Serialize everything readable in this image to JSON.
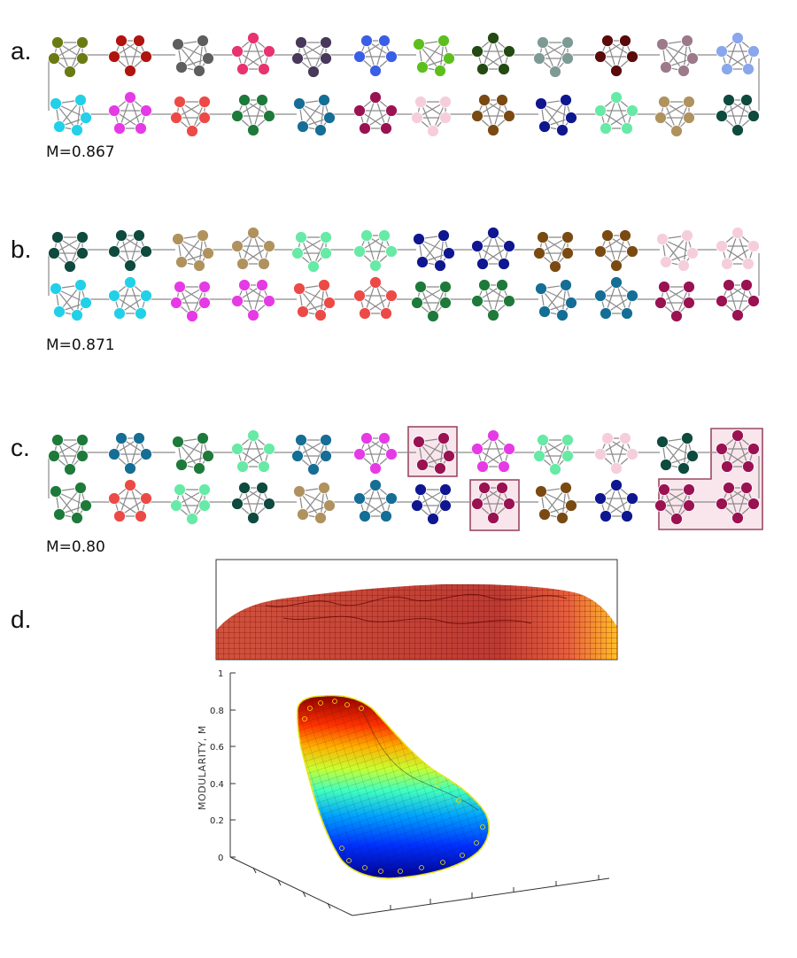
{
  "panels": {
    "a": {
      "label": "a.",
      "modularity": "M=0.867",
      "top_colors": [
        "#6b7a12",
        "#b0140f",
        "#5e5e5e",
        "#e8336e",
        "#48385a",
        "#3a5ee6",
        "#5cbf1e",
        "#234a12",
        "#7e9a94",
        "#5a0a0a",
        "#9c7a8a",
        "#8aa6ec"
      ],
      "bottom_colors": [
        "#22d0e8",
        "#e63ae6",
        "#ec4a46",
        "#1e7a3a",
        "#146e96",
        "#9a1252",
        "#f6cedb",
        "#7a4a12",
        "#0e1690",
        "#66eaa6",
        "#b0925e",
        "#0e4a3e"
      ]
    },
    "b": {
      "label": "b.",
      "modularity": "M=0.871",
      "top_colors": [
        "#0e4a3e",
        "#0e4a3e",
        "#b0925e",
        "#b0925e",
        "#66eaa6",
        "#66eaa6",
        "#0e1690",
        "#0e1690",
        "#7a4a12",
        "#7a4a12",
        "#f6cedb",
        "#f6cedb"
      ],
      "bottom_colors": [
        "#22d0e8",
        "#22d0e8",
        "#e63ae6",
        "#e63ae6",
        "#ec4a46",
        "#ec4a46",
        "#1e7a3a",
        "#1e7a3a",
        "#146e96",
        "#146e96",
        "#9a1252",
        "#9a1252"
      ]
    },
    "c": {
      "label": "c.",
      "modularity": "M=0.80",
      "top_colors": [
        "#1e7a3a",
        "#146e96",
        "#1e7a3a",
        "#66eaa6",
        "#146e96",
        "#e63ae6",
        "#9a1252",
        "#e63ae6",
        "#66eaa6",
        "#f6cedb",
        "#0e4a3e",
        "#9a1252"
      ],
      "bottom_colors": [
        "#1e7a3a",
        "#ec4a46",
        "#66eaa6",
        "#0e4a3e",
        "#b0925e",
        "#146e96",
        "#0e1690",
        "#9a1252",
        "#7a4a12",
        "#0e1690",
        "#9a1252",
        "#9a1252"
      ]
    },
    "d": {
      "label": "d.",
      "z_axis_label": "MODULARITY, M",
      "z_ticks": [
        "0",
        "0.2",
        "0.4",
        "0.6",
        "0.8",
        "1"
      ]
    }
  }
}
